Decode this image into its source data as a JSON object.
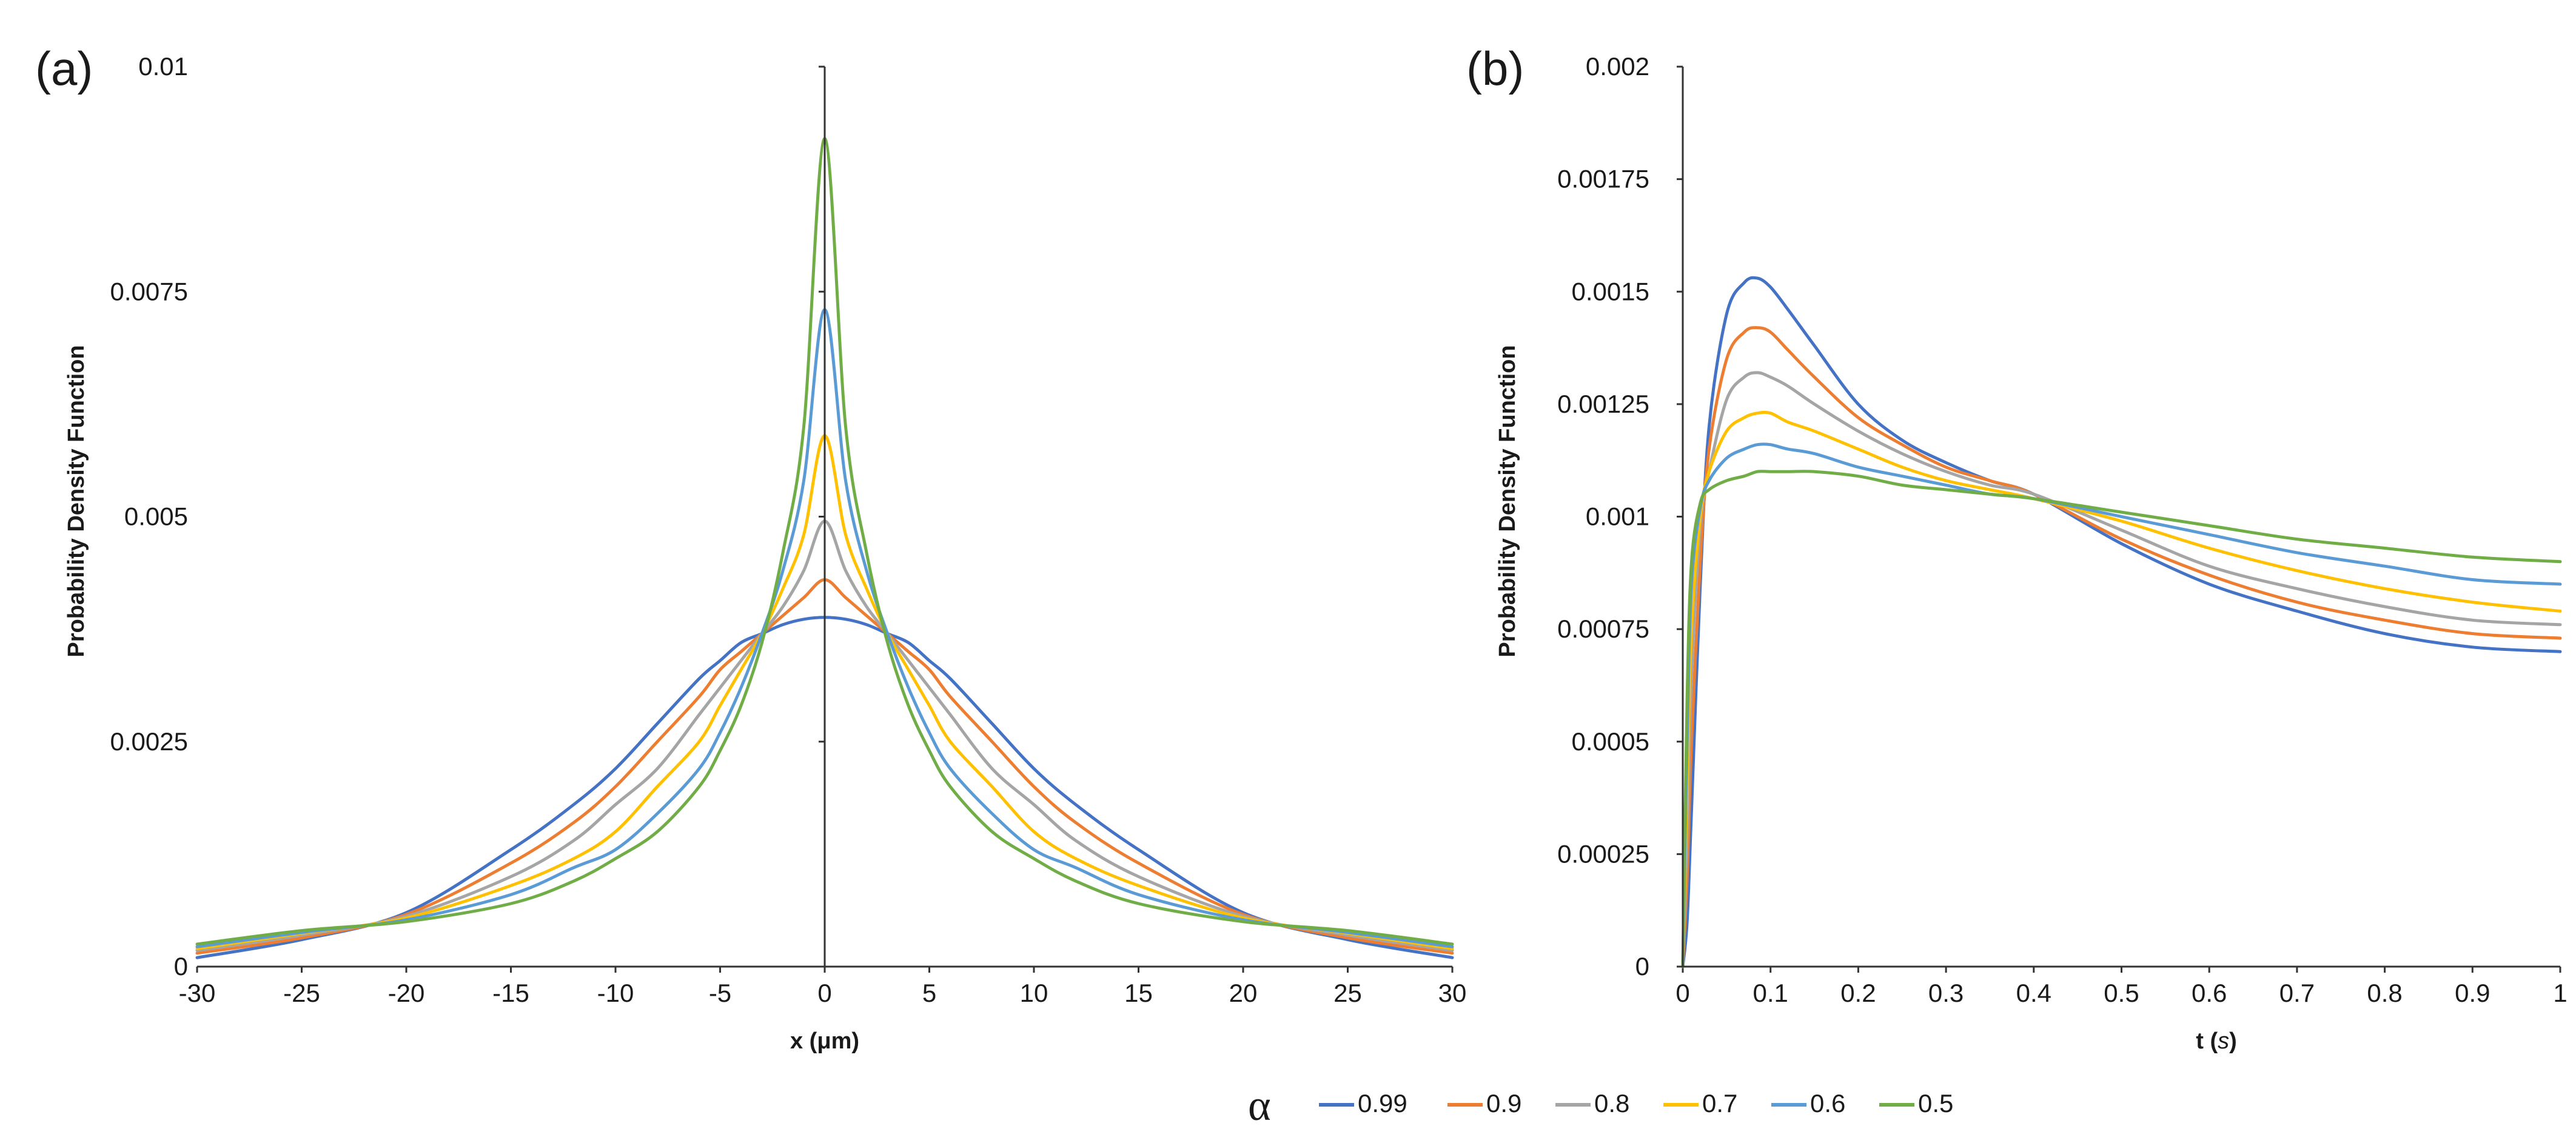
{
  "colors": {
    "s099": "#4472C4",
    "s09": "#ED7D31",
    "s08": "#A5A5A5",
    "s07": "#FFC000",
    "s06": "#5B9BD5",
    "s05": "#70AD47",
    "axis": "#333333",
    "text": "#1a1a1a"
  },
  "legend": {
    "symbol": "α",
    "entries": [
      "0.99",
      "0.9",
      "0.8",
      "0.7",
      "0.6",
      "0.5"
    ]
  },
  "chart_data": [
    {
      "type": "line",
      "panel_label": "(a)",
      "xlabel": "x (μm)",
      "ylabel": "Probability Density Function",
      "xlim": [
        -30,
        30
      ],
      "ylim": [
        0,
        0.01
      ],
      "xticks": [
        "-30",
        "-25",
        "-20",
        "-15",
        "-10",
        "-5",
        "0",
        "5",
        "10",
        "15",
        "20",
        "25",
        "30"
      ],
      "yticks": [
        "0",
        "0.0025",
        "0.005",
        "0.0075",
        "0.01"
      ],
      "x": [
        -30,
        -25,
        -20,
        -15,
        -12,
        -10,
        -8,
        -6,
        -5,
        -4,
        -3,
        -2,
        -1,
        0,
        1,
        2,
        3,
        4,
        5,
        6,
        8,
        10,
        12,
        15,
        20,
        25,
        30
      ],
      "series": [
        {
          "name": "0.99",
          "values": [
            0.0001,
            0.0003,
            0.0006,
            0.0013,
            0.0018,
            0.0022,
            0.0027,
            0.0032,
            0.0034,
            0.0036,
            0.0037,
            0.0038,
            0.00386,
            0.00388,
            0.00386,
            0.0038,
            0.0037,
            0.0036,
            0.0034,
            0.0032,
            0.0027,
            0.0022,
            0.0018,
            0.0013,
            0.0006,
            0.0003,
            0.0001
          ]
        },
        {
          "name": "0.9",
          "values": [
            0.00015,
            0.00032,
            0.00058,
            0.00115,
            0.0016,
            0.002,
            0.0025,
            0.003,
            0.0033,
            0.0035,
            0.0037,
            0.0039,
            0.0041,
            0.0043,
            0.0041,
            0.0039,
            0.0037,
            0.0035,
            0.0033,
            0.003,
            0.0025,
            0.002,
            0.0016,
            0.00115,
            0.00058,
            0.00032,
            0.00015
          ]
        },
        {
          "name": "0.8",
          "values": [
            0.00018,
            0.00035,
            0.00056,
            0.001,
            0.0014,
            0.0018,
            0.0022,
            0.0028,
            0.0031,
            0.0034,
            0.0037,
            0.004,
            0.0044,
            0.00495,
            0.0044,
            0.004,
            0.0037,
            0.0034,
            0.0031,
            0.0028,
            0.0022,
            0.0018,
            0.0014,
            0.001,
            0.00056,
            0.00035,
            0.00018
          ]
        },
        {
          "name": "0.7",
          "values": [
            0.0002,
            0.00037,
            0.00054,
            0.0009,
            0.0012,
            0.0015,
            0.002,
            0.0025,
            0.0029,
            0.0033,
            0.0037,
            0.0042,
            0.0048,
            0.0059,
            0.0048,
            0.0042,
            0.0037,
            0.0033,
            0.0029,
            0.0025,
            0.002,
            0.0015,
            0.0012,
            0.0009,
            0.00054,
            0.00037,
            0.0002
          ]
        },
        {
          "name": "0.6",
          "values": [
            0.00022,
            0.00038,
            0.00052,
            0.0008,
            0.0011,
            0.0013,
            0.0017,
            0.0022,
            0.0026,
            0.0031,
            0.0037,
            0.0044,
            0.0054,
            0.0073,
            0.0054,
            0.0044,
            0.0037,
            0.0031,
            0.0026,
            0.0022,
            0.0017,
            0.0013,
            0.0011,
            0.0008,
            0.00052,
            0.00038,
            0.00022
          ]
        },
        {
          "name": "0.5",
          "values": [
            0.00025,
            0.0004,
            0.0005,
            0.0007,
            0.00095,
            0.0012,
            0.0015,
            0.002,
            0.0024,
            0.0029,
            0.0036,
            0.0046,
            0.006,
            0.0092,
            0.006,
            0.0046,
            0.0036,
            0.0029,
            0.0024,
            0.002,
            0.0015,
            0.0012,
            0.00095,
            0.0007,
            0.0005,
            0.0004,
            0.00025
          ]
        }
      ]
    },
    {
      "type": "line",
      "panel_label": "(b)",
      "xlabel": "t (s)",
      "xlabel_plain": "t (",
      "xlabel_italic": "s",
      "xlabel_close": ")",
      "ylabel": "Probability Density Function",
      "xlim": [
        0,
        1
      ],
      "ylim": [
        0,
        0.002
      ],
      "xticks": [
        "0",
        "0.1",
        "0.2",
        "0.3",
        "0.4",
        "0.5",
        "0.6",
        "0.7",
        "0.8",
        "0.9",
        "1"
      ],
      "yticks": [
        "0",
        "0.00025",
        "0.0005",
        "0.00075",
        "0.001",
        "0.00125",
        "0.0015",
        "0.00175",
        "0.002"
      ],
      "x": [
        0,
        0.005,
        0.01,
        0.02,
        0.03,
        0.05,
        0.07,
        0.085,
        0.1,
        0.12,
        0.15,
        0.2,
        0.25,
        0.3,
        0.35,
        0.4,
        0.5,
        0.6,
        0.7,
        0.8,
        0.9,
        1.0
      ],
      "series": [
        {
          "name": "0.99",
          "values": [
            0,
            0.0001,
            0.00035,
            0.00085,
            0.0012,
            0.00145,
            0.00152,
            0.00153,
            0.00151,
            0.00146,
            0.00138,
            0.00125,
            0.00117,
            0.00112,
            0.00108,
            0.00105,
            0.00094,
            0.00085,
            0.00079,
            0.00074,
            0.00071,
            0.0007
          ]
        },
        {
          "name": "0.9",
          "values": [
            0,
            0.0002,
            0.0005,
            0.0009,
            0.00115,
            0.00135,
            0.00141,
            0.00142,
            0.00141,
            0.00137,
            0.00131,
            0.00122,
            0.00116,
            0.00111,
            0.00108,
            0.00105,
            0.00095,
            0.00087,
            0.00081,
            0.00077,
            0.00074,
            0.00073
          ]
        },
        {
          "name": "0.8",
          "values": [
            0,
            0.0003,
            0.00065,
            0.00098,
            0.0011,
            0.00126,
            0.00131,
            0.00132,
            0.00131,
            0.00129,
            0.00125,
            0.00119,
            0.00114,
            0.0011,
            0.00107,
            0.00105,
            0.00097,
            0.00089,
            0.00084,
            0.0008,
            0.00077,
            0.00076
          ]
        },
        {
          "name": "0.7",
          "values": [
            0,
            0.0004,
            0.00075,
            0.001,
            0.0011,
            0.00119,
            0.00122,
            0.00123,
            0.00123,
            0.00121,
            0.00119,
            0.00115,
            0.00111,
            0.00108,
            0.00106,
            0.00104,
            0.00099,
            0.00093,
            0.00088,
            0.00084,
            0.00081,
            0.00079
          ]
        },
        {
          "name": "0.6",
          "values": [
            0,
            0.0005,
            0.00085,
            0.00102,
            0.00108,
            0.00113,
            0.00115,
            0.00116,
            0.00116,
            0.00115,
            0.00114,
            0.00111,
            0.00109,
            0.00107,
            0.00105,
            0.00104,
            0.001,
            0.00096,
            0.00092,
            0.00089,
            0.00086,
            0.00085
          ]
        },
        {
          "name": "0.5",
          "values": [
            0,
            0.0006,
            0.0009,
            0.00103,
            0.00106,
            0.00108,
            0.00109,
            0.0011,
            0.0011,
            0.0011,
            0.0011,
            0.00109,
            0.00107,
            0.00106,
            0.00105,
            0.00104,
            0.00101,
            0.00098,
            0.00095,
            0.00093,
            0.00091,
            0.0009
          ]
        }
      ]
    }
  ]
}
